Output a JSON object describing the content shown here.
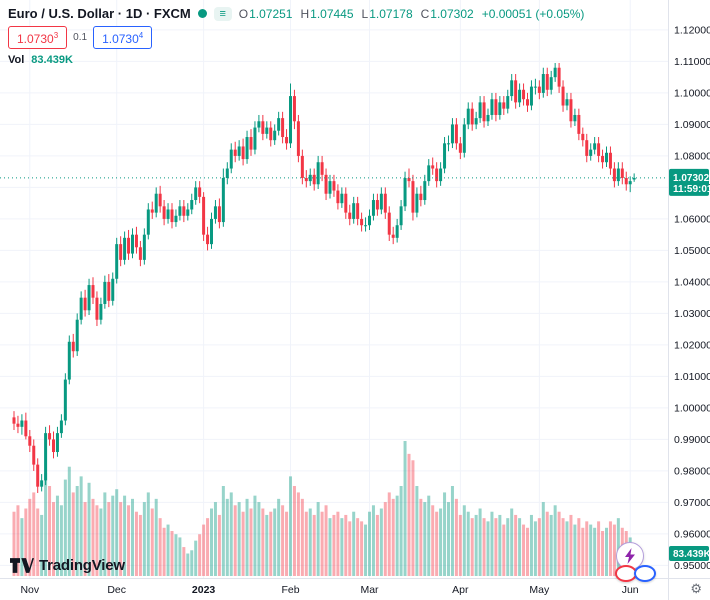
{
  "header": {
    "title": "Euro / U.S. Dollar · 1D · FXCM",
    "ohlc": {
      "o_label": "O",
      "o_value": "1.07251",
      "h_label": "H",
      "h_value": "1.07445",
      "l_label": "L",
      "l_value": "1.07178",
      "c_label": "C",
      "c_value": "1.07302",
      "change": "+0.00051 (+0.05%)"
    },
    "bid_ask": {
      "sell_main": "1.0730",
      "sell_sup": "3",
      "spread": "0.1",
      "buy_main": "1.0730",
      "buy_sup": "4"
    },
    "volume_row": {
      "label": "Vol",
      "value": "83.439K"
    }
  },
  "price_axis": {
    "current_price_label": "1.07302",
    "countdown": "11:59:01",
    "volume_label": "83.439K"
  },
  "footer": {
    "logo_text": "TradingView"
  },
  "colors": {
    "up": "#089981",
    "down": "#f23645",
    "vol_up": "rgba(8,153,129,0.42)",
    "vol_down": "rgba(242,54,69,0.42)",
    "grid": "#f0f3fa",
    "axis_border": "#e0e3eb",
    "label_bg": "#089981",
    "sell": "#f23645",
    "buy": "#2962ff",
    "lightning": "#8e24aa"
  },
  "chart_data": {
    "type": "candlestick+volume",
    "symbol": "EUR/USD",
    "timeframe": "1D",
    "exchange": "FXCM",
    "title": "Euro / U.S. Dollar",
    "ylim": [
      0.95,
      1.12
    ],
    "current_price": 1.07302,
    "price_ticks": [
      1.12,
      1.11,
      1.1,
      1.09,
      1.08,
      1.07,
      1.06,
      1.05,
      1.04,
      1.03,
      1.02,
      1.01,
      1.0,
      0.99,
      0.98,
      0.97,
      0.96,
      0.95
    ],
    "time_ticks": [
      {
        "label": "Nov",
        "index": 4
      },
      {
        "label": "Dec",
        "index": 26
      },
      {
        "label": "2023",
        "index": 48,
        "bold": true
      },
      {
        "label": "Feb",
        "index": 70
      },
      {
        "label": "Mar",
        "index": 90
      },
      {
        "label": "Apr",
        "index": 113
      },
      {
        "label": "May",
        "index": 133
      },
      {
        "label": "Jun",
        "index": 156
      }
    ],
    "candles": [
      [
        0.997,
        0.999,
        0.993,
        0.995
      ],
      [
        0.995,
        0.9975,
        0.992,
        0.994
      ],
      [
        0.994,
        0.998,
        0.9915,
        0.996
      ],
      [
        0.996,
        0.9985,
        0.99,
        0.991
      ],
      [
        0.991,
        0.993,
        0.986,
        0.988
      ],
      [
        0.988,
        0.99,
        0.98,
        0.982
      ],
      [
        0.982,
        0.984,
        0.973,
        0.975
      ],
      [
        0.975,
        0.979,
        0.9735,
        0.977
      ],
      [
        0.977,
        0.994,
        0.9755,
        0.992
      ],
      [
        0.992,
        0.9945,
        0.988,
        0.99
      ],
      [
        0.99,
        0.9925,
        0.984,
        0.986
      ],
      [
        0.986,
        0.994,
        0.9845,
        0.992
      ],
      [
        0.992,
        0.998,
        0.9905,
        0.996
      ],
      [
        0.996,
        1.011,
        0.9945,
        1.009
      ],
      [
        1.009,
        1.023,
        1.0075,
        1.021
      ],
      [
        1.021,
        1.0235,
        1.016,
        1.018
      ],
      [
        1.018,
        1.03,
        1.0165,
        1.028
      ],
      [
        1.028,
        1.037,
        1.0265,
        1.035
      ],
      [
        1.035,
        1.0375,
        1.029,
        1.031
      ],
      [
        1.031,
        1.041,
        1.0295,
        1.039
      ],
      [
        1.039,
        1.0415,
        1.033,
        1.035
      ],
      [
        1.035,
        1.037,
        1.026,
        1.028
      ],
      [
        1.028,
        1.035,
        1.0265,
        1.033
      ],
      [
        1.033,
        1.042,
        1.0315,
        1.04
      ],
      [
        1.04,
        1.0425,
        1.032,
        1.034
      ],
      [
        1.034,
        1.043,
        1.0325,
        1.041
      ],
      [
        1.041,
        1.054,
        1.0395,
        1.052
      ],
      [
        1.052,
        1.0545,
        1.045,
        1.047
      ],
      [
        1.047,
        1.056,
        1.0455,
        1.054
      ],
      [
        1.054,
        1.0565,
        1.047,
        1.049
      ],
      [
        1.049,
        1.057,
        1.0475,
        1.055
      ],
      [
        1.055,
        1.0575,
        1.049,
        1.051
      ],
      [
        1.051,
        1.053,
        1.045,
        1.047
      ],
      [
        1.047,
        1.057,
        1.0455,
        1.055
      ],
      [
        1.055,
        1.065,
        1.0535,
        1.063
      ],
      [
        1.063,
        1.0655,
        1.06,
        1.062
      ],
      [
        1.062,
        1.07,
        1.0605,
        1.068
      ],
      [
        1.068,
        1.0705,
        1.062,
        1.064
      ],
      [
        1.064,
        1.066,
        1.058,
        1.06
      ],
      [
        1.06,
        1.065,
        1.0585,
        1.063
      ],
      [
        1.063,
        1.065,
        1.057,
        1.059
      ],
      [
        1.059,
        1.063,
        1.0575,
        1.061
      ],
      [
        1.061,
        1.066,
        1.0595,
        1.064
      ],
      [
        1.064,
        1.066,
        1.059,
        1.061
      ],
      [
        1.061,
        1.065,
        1.0595,
        1.063
      ],
      [
        1.063,
        1.068,
        1.0615,
        1.066
      ],
      [
        1.066,
        1.072,
        1.0645,
        1.07
      ],
      [
        1.07,
        1.072,
        1.065,
        1.067
      ],
      [
        1.067,
        1.0685,
        1.053,
        1.055
      ],
      [
        1.055,
        1.0575,
        1.05,
        1.052
      ],
      [
        1.052,
        1.062,
        1.0505,
        1.06
      ],
      [
        1.06,
        1.066,
        1.0585,
        1.064
      ],
      [
        1.064,
        1.0665,
        1.057,
        1.059
      ],
      [
        1.059,
        1.076,
        1.0575,
        1.073
      ],
      [
        1.073,
        1.078,
        1.071,
        1.076
      ],
      [
        1.076,
        1.084,
        1.0745,
        1.082
      ],
      [
        1.082,
        1.0845,
        1.078,
        1.08
      ],
      [
        1.08,
        1.085,
        1.0785,
        1.083
      ],
      [
        1.083,
        1.0855,
        1.077,
        1.079
      ],
      [
        1.079,
        1.088,
        1.0775,
        1.086
      ],
      [
        1.086,
        1.0885,
        1.08,
        1.082
      ],
      [
        1.082,
        1.091,
        1.0805,
        1.089
      ],
      [
        1.089,
        1.093,
        1.0875,
        1.091
      ],
      [
        1.091,
        1.093,
        1.085,
        1.087
      ],
      [
        1.087,
        1.091,
        1.0855,
        1.089
      ],
      [
        1.089,
        1.091,
        1.083,
        1.085
      ],
      [
        1.085,
        1.09,
        1.0835,
        1.088
      ],
      [
        1.088,
        1.094,
        1.0865,
        1.092
      ],
      [
        1.092,
        1.094,
        1.084,
        1.086
      ],
      [
        1.086,
        1.0885,
        1.082,
        1.084
      ],
      [
        1.084,
        1.103,
        1.0825,
        1.099
      ],
      [
        1.099,
        1.101,
        1.0885,
        1.091
      ],
      [
        1.091,
        1.093,
        1.078,
        1.08
      ],
      [
        1.08,
        1.082,
        1.071,
        1.073
      ],
      [
        1.073,
        1.0755,
        1.07,
        1.072
      ],
      [
        1.072,
        1.076,
        1.0705,
        1.074
      ],
      [
        1.074,
        1.076,
        1.069,
        1.071
      ],
      [
        1.071,
        1.08,
        1.0695,
        1.078
      ],
      [
        1.078,
        1.08,
        1.072,
        1.074
      ],
      [
        1.074,
        1.076,
        1.066,
        1.068
      ],
      [
        1.068,
        1.074,
        1.0665,
        1.072
      ],
      [
        1.072,
        1.074,
        1.067,
        1.069
      ],
      [
        1.069,
        1.071,
        1.063,
        1.065
      ],
      [
        1.065,
        1.07,
        1.0635,
        1.068
      ],
      [
        1.068,
        1.07,
        1.06,
        1.062
      ],
      [
        1.062,
        1.0645,
        1.058,
        1.06
      ],
      [
        1.06,
        1.067,
        1.0585,
        1.065
      ],
      [
        1.065,
        1.067,
        1.058,
        1.06
      ],
      [
        1.06,
        1.062,
        1.056,
        1.058
      ],
      [
        1.058,
        1.0605,
        1.056,
        1.058
      ],
      [
        1.058,
        1.063,
        1.0565,
        1.061
      ],
      [
        1.061,
        1.068,
        1.0595,
        1.066
      ],
      [
        1.066,
        1.068,
        1.061,
        1.063
      ],
      [
        1.063,
        1.07,
        1.0615,
        1.068
      ],
      [
        1.068,
        1.07,
        1.06,
        1.062
      ],
      [
        1.062,
        1.064,
        1.053,
        1.055
      ],
      [
        1.055,
        1.0575,
        1.052,
        1.054
      ],
      [
        1.054,
        1.06,
        1.0525,
        1.058
      ],
      [
        1.058,
        1.066,
        1.0565,
        1.064
      ],
      [
        1.064,
        1.075,
        1.0625,
        1.073
      ],
      [
        1.073,
        1.076,
        1.07,
        1.072
      ],
      [
        1.072,
        1.074,
        1.0595,
        1.062
      ],
      [
        1.062,
        1.07,
        1.0605,
        1.068
      ],
      [
        1.068,
        1.0705,
        1.064,
        1.066
      ],
      [
        1.066,
        1.074,
        1.0645,
        1.072
      ],
      [
        1.072,
        1.079,
        1.0705,
        1.077
      ],
      [
        1.077,
        1.0795,
        1.074,
        1.076
      ],
      [
        1.076,
        1.078,
        1.07,
        1.072
      ],
      [
        1.072,
        1.078,
        1.0705,
        1.076
      ],
      [
        1.076,
        1.086,
        1.0745,
        1.084
      ],
      [
        1.084,
        1.0865,
        1.0815,
        1.084
      ],
      [
        1.084,
        1.092,
        1.0825,
        1.09
      ],
      [
        1.09,
        1.092,
        1.082,
        1.084
      ],
      [
        1.084,
        1.086,
        1.079,
        1.081
      ],
      [
        1.081,
        1.092,
        1.0795,
        1.09
      ],
      [
        1.09,
        1.097,
        1.0885,
        1.095
      ],
      [
        1.095,
        1.097,
        1.088,
        1.09
      ],
      [
        1.09,
        1.094,
        1.0885,
        1.092
      ],
      [
        1.092,
        1.099,
        1.0905,
        1.097
      ],
      [
        1.097,
        1.099,
        1.089,
        1.091
      ],
      [
        1.091,
        1.095,
        1.0895,
        1.093
      ],
      [
        1.093,
        1.1,
        1.0915,
        1.098
      ],
      [
        1.098,
        1.1,
        1.091,
        1.093
      ],
      [
        1.093,
        1.099,
        1.0915,
        1.097
      ],
      [
        1.097,
        1.099,
        1.093,
        1.095
      ],
      [
        1.095,
        1.101,
        1.0935,
        1.099
      ],
      [
        1.099,
        1.106,
        1.0975,
        1.104
      ],
      [
        1.104,
        1.106,
        1.095,
        1.097
      ],
      [
        1.097,
        1.103,
        1.0955,
        1.101
      ],
      [
        1.101,
        1.103,
        1.096,
        1.098
      ],
      [
        1.098,
        1.1,
        1.094,
        1.096
      ],
      [
        1.096,
        1.104,
        1.0945,
        1.102
      ],
      [
        1.102,
        1.1045,
        1.0995,
        1.102
      ],
      [
        1.102,
        1.104,
        1.098,
        1.1
      ],
      [
        1.1,
        1.108,
        1.0985,
        1.106
      ],
      [
        1.106,
        1.108,
        1.099,
        1.101
      ],
      [
        1.101,
        1.107,
        1.0995,
        1.105
      ],
      [
        1.105,
        1.1095,
        1.1035,
        1.108
      ],
      [
        1.108,
        1.1095,
        1.1,
        1.102
      ],
      [
        1.102,
        1.104,
        1.094,
        1.096
      ],
      [
        1.096,
        1.1,
        1.0945,
        1.098
      ],
      [
        1.098,
        1.1,
        1.089,
        1.091
      ],
      [
        1.091,
        1.095,
        1.0895,
        1.093
      ],
      [
        1.093,
        1.095,
        1.085,
        1.087
      ],
      [
        1.087,
        1.089,
        1.083,
        1.085
      ],
      [
        1.085,
        1.087,
        1.078,
        1.08
      ],
      [
        1.08,
        1.084,
        1.0785,
        1.082
      ],
      [
        1.082,
        1.086,
        1.0805,
        1.084
      ],
      [
        1.084,
        1.086,
        1.078,
        1.08
      ],
      [
        1.08,
        1.082,
        1.076,
        1.078
      ],
      [
        1.078,
        1.083,
        1.0765,
        1.081
      ],
      [
        1.081,
        1.083,
        1.074,
        1.076
      ],
      [
        1.076,
        1.078,
        1.07,
        1.072
      ],
      [
        1.072,
        1.078,
        1.0705,
        1.076
      ],
      [
        1.076,
        1.078,
        1.071,
        1.073
      ],
      [
        1.073,
        1.075,
        1.069,
        1.071
      ],
      [
        1.071,
        1.0735,
        1.0685,
        1.072
      ],
      [
        1.07251,
        1.07445,
        1.07178,
        1.07302
      ]
    ],
    "volumes_k": [
      200,
      220,
      180,
      210,
      240,
      260,
      210,
      190,
      320,
      280,
      230,
      250,
      220,
      300,
      340,
      260,
      280,
      310,
      230,
      290,
      240,
      220,
      210,
      260,
      230,
      250,
      270,
      230,
      250,
      220,
      240,
      200,
      190,
      230,
      260,
      210,
      240,
      180,
      150,
      160,
      140,
      130,
      120,
      90,
      70,
      80,
      110,
      130,
      160,
      180,
      210,
      230,
      190,
      280,
      240,
      260,
      220,
      230,
      200,
      240,
      210,
      250,
      230,
      210,
      190,
      200,
      210,
      240,
      220,
      200,
      310,
      280,
      260,
      240,
      200,
      210,
      190,
      230,
      200,
      220,
      180,
      190,
      200,
      180,
      190,
      170,
      200,
      180,
      170,
      160,
      200,
      220,
      190,
      210,
      230,
      260,
      240,
      250,
      280,
      420,
      380,
      360,
      280,
      240,
      230,
      250,
      220,
      200,
      210,
      260,
      230,
      280,
      240,
      190,
      220,
      200,
      180,
      190,
      210,
      180,
      170,
      200,
      180,
      190,
      160,
      180,
      210,
      190,
      180,
      160,
      150,
      190,
      170,
      180,
      230,
      200,
      190,
      220,
      200,
      180,
      170,
      190,
      160,
      180,
      150,
      170,
      160,
      150,
      170,
      140,
      150,
      170,
      160,
      180,
      150,
      140,
      120,
      83.439
    ]
  }
}
